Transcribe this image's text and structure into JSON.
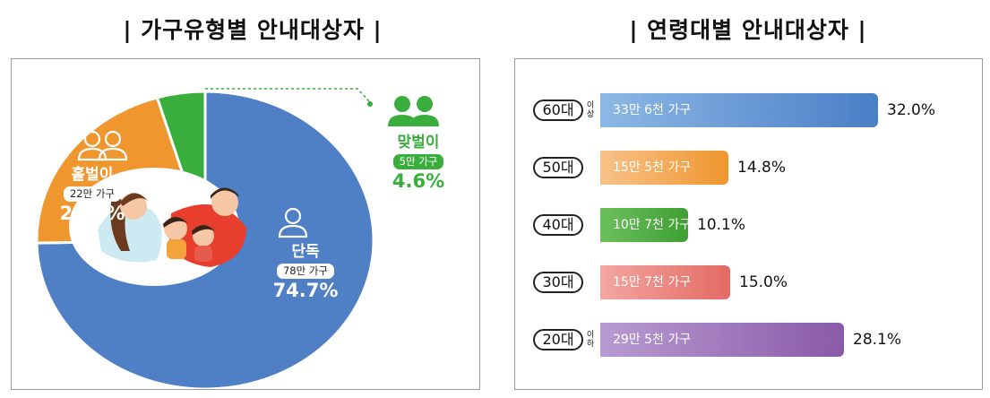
{
  "left_title": "| 가구유형별 안내대상자 |",
  "right_title": "| 연령대별 안내대상자 |",
  "colors": {
    "single": "#4f7fc4",
    "single_parent": "#f0962e",
    "couple": "#3aae3c",
    "center_ring": "#ffffff"
  },
  "chart_data": [
    {
      "type": "pie",
      "title": "가구유형별 안내대상자",
      "slices": [
        {
          "label": "단독",
          "households": "78만 가구",
          "value": 74.7,
          "value_label": "74.7%",
          "color": "#4f7fc4",
          "icon": "person-icon"
        },
        {
          "label": "홑벌이",
          "households": "22만 가구",
          "value": 20.7,
          "value_label": "20.7%",
          "color": "#f0962e",
          "icon": "two-people-icon"
        },
        {
          "label": "맞벌이",
          "households": "5만 가구",
          "value": 4.6,
          "value_label": "4.6%",
          "color": "#3aae3c",
          "icon": "two-people-icon"
        }
      ],
      "center_image": "family-illustration"
    },
    {
      "type": "bar",
      "orientation": "horizontal",
      "title": "연령대별 안내대상자",
      "categories": [
        {
          "label": "60대",
          "suffix": "이상"
        },
        {
          "label": "50대",
          "suffix": ""
        },
        {
          "label": "40대",
          "suffix": ""
        },
        {
          "label": "30대",
          "suffix": ""
        },
        {
          "label": "20대",
          "suffix": "이하"
        }
      ],
      "values": [
        32.0,
        14.8,
        10.1,
        15.0,
        28.1
      ],
      "value_labels": [
        "32.0%",
        "14.8%",
        "10.1%",
        "15.0%",
        "28.1%"
      ],
      "households": [
        "33만 6천 가구",
        "15만 5천 가구",
        "10만 7천 가구",
        "15만 7천 가구",
        "29만 5천 가구"
      ],
      "colors": [
        [
          "#8db8e6",
          "#4a7fc6"
        ],
        [
          "#f7c28a",
          "#f0962e"
        ],
        [
          "#6cc05c",
          "#3e9f34"
        ],
        [
          "#f3a6a1",
          "#e46a64"
        ],
        [
          "#b89bd2",
          "#8a5aa8"
        ]
      ]
    }
  ]
}
